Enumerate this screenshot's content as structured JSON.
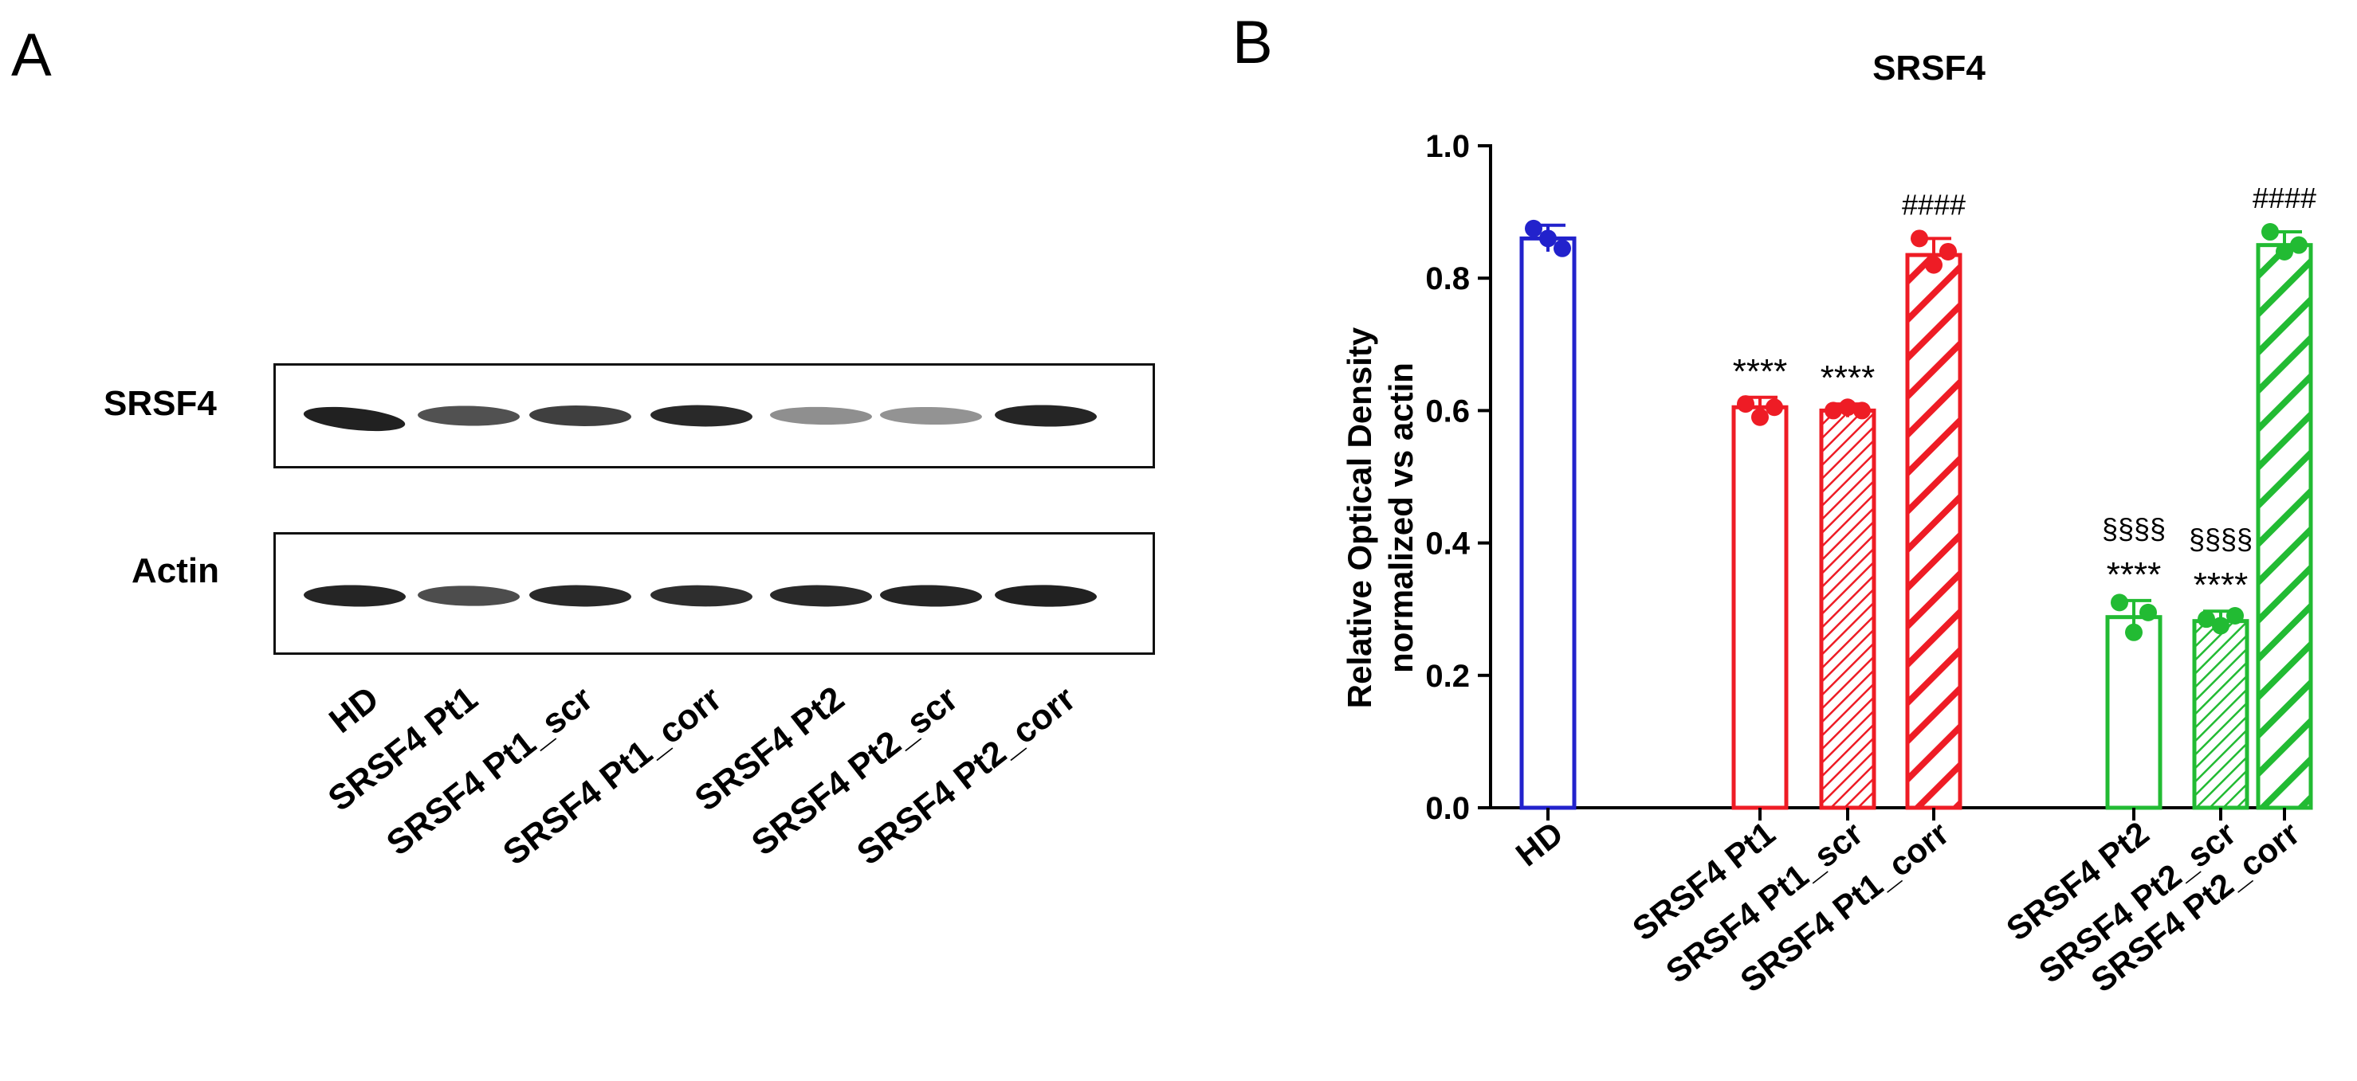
{
  "panels": {
    "a_letter": "A",
    "b_letter": "B"
  },
  "blot": {
    "row_labels": [
      "SRSF4",
      "Actin"
    ],
    "lanes": [
      "HD",
      "SRSF4 Pt1",
      "SRSF4 Pt1_scr",
      "SRSF4 Pt1_corr",
      "SRSF4 Pt2",
      "SRSF4 Pt2_scr",
      "SRSF4 Pt2_corr"
    ],
    "band_intensity": {
      "SRSF4": [
        0.92,
        0.7,
        0.78,
        0.88,
        0.42,
        0.4,
        0.9
      ],
      "Actin": [
        0.9,
        0.72,
        0.88,
        0.86,
        0.88,
        0.9,
        0.92
      ]
    }
  },
  "chart_data": {
    "type": "bar",
    "title": "SRSF4",
    "ylabel_line1": "Relative Optical Density",
    "ylabel_line2": "normalized vs actin",
    "ylim": [
      0,
      1.0
    ],
    "yticks": [
      "0.0",
      "0.2",
      "0.4",
      "0.6",
      "0.8",
      "1.0"
    ],
    "categories": [
      "HD",
      "SRSF4 Pt1",
      "SRSF4 Pt1_scr",
      "SRSF4 Pt1_corr",
      "SRSF4 Pt2",
      "SRSF4 Pt2_scr",
      "SRSF4 Pt2_corr"
    ],
    "values": [
      0.86,
      0.605,
      0.6,
      0.835,
      0.288,
      0.282,
      0.85
    ],
    "errors": [
      0.02,
      0.015,
      0.01,
      0.025,
      0.025,
      0.015,
      0.02
    ],
    "points": [
      [
        0.875,
        0.86,
        0.845
      ],
      [
        0.61,
        0.59,
        0.605
      ],
      [
        0.6,
        0.605,
        0.6
      ],
      [
        0.86,
        0.82,
        0.84
      ],
      [
        0.31,
        0.265,
        0.295
      ],
      [
        0.285,
        0.275,
        0.29
      ],
      [
        0.87,
        0.84,
        0.85
      ]
    ],
    "colors": [
      "#2222cc",
      "#ee1c25",
      "#ee1c25",
      "#ee1c25",
      "#22bb33",
      "#22bb33",
      "#22bb33"
    ],
    "patterns": [
      "none",
      "none",
      "fine-hatch",
      "bold-hatch",
      "none",
      "fine-hatch",
      "bold-hatch"
    ],
    "annotations": [
      {
        "bar": 1,
        "text": "****"
      },
      {
        "bar": 2,
        "text": "****"
      },
      {
        "bar": 3,
        "text": "####"
      },
      {
        "bar": 4,
        "text": "****"
      },
      {
        "bar": 4,
        "text": "§§§§"
      },
      {
        "bar": 5,
        "text": "****"
      },
      {
        "bar": 5,
        "text": "§§§§"
      },
      {
        "bar": 6,
        "text": "####"
      }
    ],
    "grid": false,
    "legend": "none"
  }
}
